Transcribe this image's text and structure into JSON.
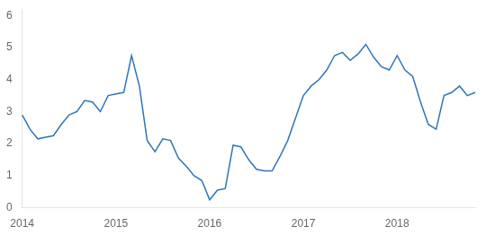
{
  "chart_data": {
    "type": "line",
    "categories": [
      "2014",
      null,
      null,
      null,
      null,
      null,
      null,
      null,
      null,
      null,
      null,
      null,
      "2015",
      null,
      null,
      null,
      null,
      null,
      null,
      null,
      null,
      null,
      null,
      null,
      "2016",
      null,
      null,
      null,
      null,
      null,
      null,
      null,
      null,
      null,
      null,
      null,
      "2017",
      null,
      null,
      null,
      null,
      null,
      null,
      null,
      null,
      null,
      null,
      null,
      "2018",
      null,
      null,
      null,
      null,
      null,
      null,
      null,
      null,
      null,
      null
    ],
    "values": [
      2.9,
      2.45,
      2.15,
      2.2,
      2.25,
      2.6,
      2.9,
      3.0,
      3.35,
      3.3,
      3.0,
      3.5,
      3.55,
      3.6,
      4.75,
      3.8,
      2.1,
      1.75,
      2.15,
      2.1,
      1.55,
      1.3,
      1.0,
      0.85,
      0.25,
      0.55,
      0.6,
      1.95,
      1.9,
      1.5,
      1.2,
      1.15,
      1.15,
      1.6,
      2.1,
      2.8,
      3.5,
      3.8,
      4.0,
      4.3,
      4.75,
      4.85,
      4.6,
      4.8,
      5.1,
      4.7,
      4.4,
      4.3,
      4.75,
      4.3,
      4.1,
      3.3,
      2.6,
      2.45,
      3.5,
      3.6,
      3.8,
      3.5,
      3.6
    ],
    "color": "#2E75B6",
    "ylim": [
      0,
      6.2
    ],
    "yticks": [
      0,
      1,
      2,
      3,
      4,
      5,
      6
    ],
    "grid": false
  }
}
